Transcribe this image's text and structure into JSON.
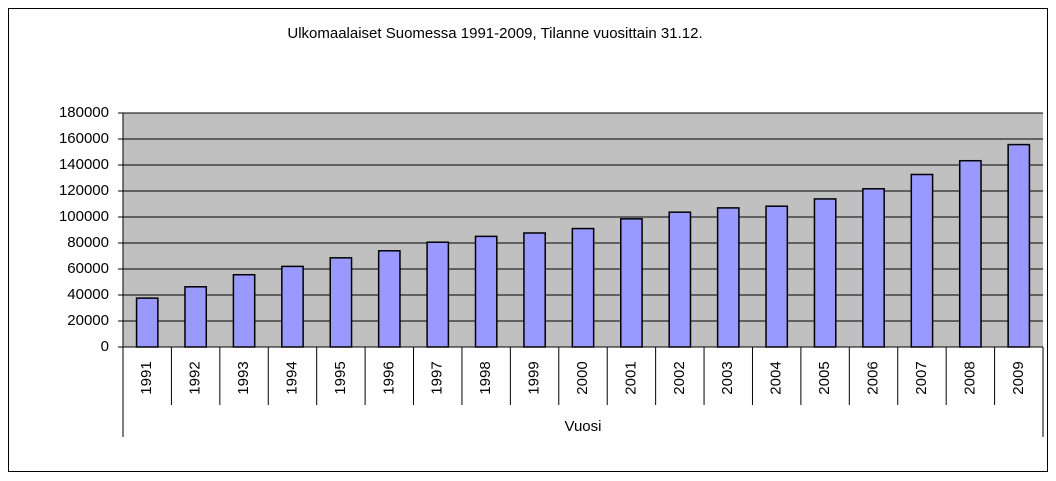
{
  "chart_data": {
    "type": "bar",
    "title": "Ulkomaalaiset Suomessa 1991-2009, Tilanne vuosittain 31.12.",
    "x_label": "Vuosi",
    "categories": [
      "1991",
      "1992",
      "1993",
      "1994",
      "1995",
      "1996",
      "1997",
      "1998",
      "1999",
      "2000",
      "2001",
      "2002",
      "2003",
      "2004",
      "2005",
      "2006",
      "2007",
      "2008",
      "2009"
    ],
    "values": [
      37600,
      46300,
      55600,
      62000,
      68600,
      74000,
      80600,
      85100,
      87700,
      91100,
      98600,
      103700,
      107000,
      108300,
      113900,
      121700,
      132700,
      143300,
      155700
    ],
    "color": "#9999ff",
    "ylim": [
      0,
      180000
    ],
    "yticks": [
      0,
      20000,
      40000,
      60000,
      80000,
      100000,
      120000,
      140000,
      160000,
      180000
    ],
    "grid": true
  }
}
